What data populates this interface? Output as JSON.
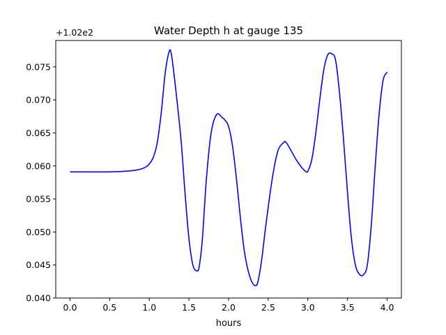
{
  "chart_data": {
    "type": "line",
    "title": "Water Depth h at gauge 135",
    "xlabel": "hours",
    "ylabel": "",
    "y_offset_label": "+1.02e2",
    "xlim": [
      -0.18,
      4.18
    ],
    "ylim": [
      0.04,
      0.079
    ],
    "x_ticks": [
      0.0,
      0.5,
      1.0,
      1.5,
      2.0,
      2.5,
      3.0,
      3.5,
      4.0
    ],
    "x_tick_labels": [
      "0.0",
      "0.5",
      "1.0",
      "1.5",
      "2.0",
      "2.5",
      "3.0",
      "3.5",
      "4.0"
    ],
    "y_ticks": [
      0.04,
      0.045,
      0.05,
      0.055,
      0.06,
      0.065,
      0.07,
      0.075
    ],
    "y_tick_labels": [
      "0.040",
      "0.045",
      "0.050",
      "0.055",
      "0.060",
      "0.065",
      "0.070",
      "0.075"
    ],
    "grid": false,
    "series": [
      {
        "color": "#0000ff",
        "x": [
          0.0,
          0.25,
          0.5,
          0.7,
          0.85,
          0.95,
          1.0,
          1.05,
          1.1,
          1.15,
          1.2,
          1.25,
          1.28,
          1.33,
          1.4,
          1.45,
          1.5,
          1.55,
          1.6,
          1.63,
          1.67,
          1.72,
          1.78,
          1.85,
          1.92,
          1.95,
          2.0,
          2.05,
          2.1,
          2.15,
          2.2,
          2.25,
          2.3,
          2.35,
          2.38,
          2.42,
          2.47,
          2.55,
          2.62,
          2.7,
          2.73,
          2.78,
          2.85,
          2.92,
          2.97,
          3.0,
          3.05,
          3.1,
          3.15,
          3.2,
          3.25,
          3.3,
          3.35,
          3.4,
          3.45,
          3.5,
          3.55,
          3.6,
          3.65,
          3.7,
          3.75,
          3.8,
          3.85,
          3.9,
          3.95,
          4.0
        ],
        "y": [
          0.0591,
          0.0591,
          0.0591,
          0.0592,
          0.0594,
          0.0598,
          0.0603,
          0.0613,
          0.0635,
          0.068,
          0.074,
          0.0773,
          0.0768,
          0.072,
          0.064,
          0.056,
          0.049,
          0.045,
          0.0441,
          0.0448,
          0.049,
          0.058,
          0.065,
          0.0678,
          0.0673,
          0.067,
          0.066,
          0.063,
          0.058,
          0.052,
          0.047,
          0.044,
          0.0423,
          0.0419,
          0.043,
          0.046,
          0.051,
          0.058,
          0.0622,
          0.0636,
          0.0635,
          0.0625,
          0.061,
          0.0598,
          0.0592,
          0.0592,
          0.061,
          0.065,
          0.07,
          0.0745,
          0.0768,
          0.077,
          0.076,
          0.071,
          0.064,
          0.056,
          0.049,
          0.045,
          0.0436,
          0.0435,
          0.045,
          0.051,
          0.06,
          0.068,
          0.073,
          0.0742
        ]
      }
    ]
  }
}
